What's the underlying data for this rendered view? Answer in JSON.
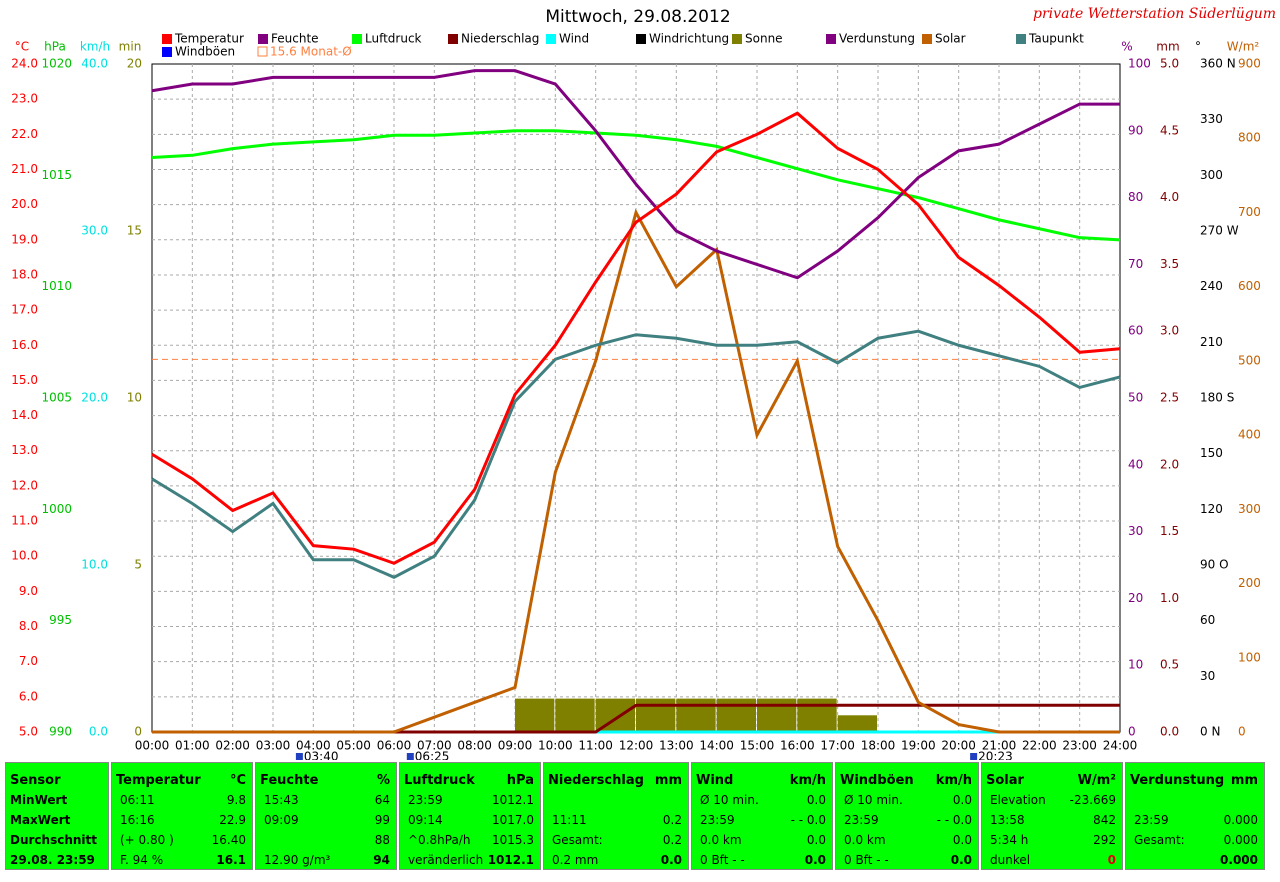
{
  "chart_data": {
    "type": "line",
    "title": "Mittwoch, 29.08.2012",
    "watermark": "private Wetterstation Süderlügum",
    "categories": [
      "00:00",
      "01:00",
      "02:00",
      "03:00",
      "04:00",
      "05:00",
      "06:00",
      "07:00",
      "08:00",
      "09:00",
      "10:00",
      "11:00",
      "12:00",
      "13:00",
      "14:00",
      "15:00",
      "16:00",
      "17:00",
      "18:00",
      "19:00",
      "20:00",
      "21:00",
      "22:00",
      "23:00",
      "24:00"
    ],
    "grid": true,
    "axes": [
      {
        "unit": "°C",
        "color": "#ff0000",
        "ylim": [
          5,
          24
        ],
        "yticks": [
          {
            "value": 5,
            "label": "5.0"
          },
          {
            "value": 6,
            "label": "6.0"
          },
          {
            "value": 7,
            "label": "7.0"
          },
          {
            "value": 8,
            "label": "8.0"
          },
          {
            "value": 9,
            "label": "9.0"
          },
          {
            "value": 10,
            "label": "10.0"
          },
          {
            "value": 11,
            "label": "11.0"
          },
          {
            "value": 12,
            "label": "12.0"
          },
          {
            "value": 13,
            "label": "13.0"
          },
          {
            "value": 14,
            "label": "14.0"
          },
          {
            "value": 15,
            "label": "15.0"
          },
          {
            "value": 16,
            "label": "16.0"
          },
          {
            "value": 17,
            "label": "17.0"
          },
          {
            "value": 18,
            "label": "18.0"
          },
          {
            "value": 19,
            "label": "19.0"
          },
          {
            "value": 20,
            "label": "20.0"
          },
          {
            "value": 21,
            "label": "21.0"
          },
          {
            "value": 22,
            "label": "22.0"
          },
          {
            "value": 23,
            "label": "23.0"
          },
          {
            "value": 24,
            "label": "24.0"
          }
        ]
      },
      {
        "unit": "hPa",
        "color": "#00c000",
        "ylim": [
          990,
          1020
        ],
        "yticks": [
          990,
          995,
          1000,
          1005,
          1010,
          1015,
          1020
        ]
      },
      {
        "unit": "km/h",
        "color": "#00e0e0",
        "ylim": [
          0,
          40
        ],
        "yticks": [
          {
            "value": 0,
            "label": "0.0"
          },
          {
            "value": 10,
            "label": "10.0"
          },
          {
            "value": 20,
            "label": "20.0"
          },
          {
            "value": 30,
            "label": "30.0"
          },
          {
            "value": 40,
            "label": "40.0"
          }
        ]
      },
      {
        "unit": "min",
        "color": "#808000",
        "ylim": [
          0,
          20
        ],
        "yticks": [
          0,
          5,
          10,
          15,
          20
        ]
      },
      {
        "unit": "%",
        "color": "#800080",
        "ylim": [
          0,
          100
        ],
        "yticks": [
          0,
          10,
          20,
          30,
          40,
          50,
          60,
          70,
          80,
          90,
          100
        ]
      },
      {
        "unit": "mm",
        "color": "#800000",
        "ylim": [
          0,
          5
        ],
        "yticks": [
          {
            "value": 0,
            "label": "0.0"
          },
          {
            "value": 0.5,
            "label": "0.5"
          },
          {
            "value": 1,
            "label": "1.0"
          },
          {
            "value": 1.5,
            "label": "1.5"
          },
          {
            "value": 2,
            "label": "2.0"
          },
          {
            "value": 2.5,
            "label": "2.5"
          },
          {
            "value": 3,
            "label": "3.0"
          },
          {
            "value": 3.5,
            "label": "3.5"
          },
          {
            "value": 4,
            "label": "4.0"
          },
          {
            "value": 4.5,
            "label": "4.5"
          },
          {
            "value": 5,
            "label": "5.0"
          }
        ]
      },
      {
        "unit": "°",
        "color": "#000000",
        "ylim": [
          0,
          360
        ],
        "yticks": [
          {
            "value": 0,
            "label": "0 N"
          },
          30,
          60,
          {
            "value": 90,
            "label": "90 O"
          },
          120,
          150,
          {
            "value": 180,
            "label": "180 S"
          },
          210,
          240,
          {
            "value": 270,
            "label": "270 W"
          },
          300,
          330,
          {
            "value": 360,
            "label": "360 N"
          }
        ]
      },
      {
        "unit": "W/m²",
        "color": "#c06000",
        "ylim": [
          0,
          900
        ],
        "yticks": [
          0,
          100,
          200,
          300,
          400,
          500,
          600,
          700,
          800,
          900
        ]
      }
    ],
    "series": [
      {
        "name": "Temperatur",
        "color": "#ff0000",
        "axis": "°C",
        "values": [
          12.9,
          12.2,
          11.3,
          11.8,
          10.3,
          10.2,
          9.8,
          10.4,
          11.9,
          14.6,
          16.0,
          17.8,
          19.5,
          20.3,
          21.5,
          22.0,
          22.6,
          21.6,
          21.0,
          20.0,
          18.5,
          17.7,
          16.8,
          15.8,
          15.9
        ]
      },
      {
        "name": "Feuchte",
        "color": "#800080",
        "axis": "%",
        "values": [
          96,
          97,
          97,
          98,
          98,
          98,
          98,
          98,
          99,
          99,
          97,
          90,
          82,
          75,
          72,
          70,
          68,
          72,
          77,
          83,
          87,
          88,
          91,
          94,
          94
        ]
      },
      {
        "name": "Luftdruck",
        "color": "#00ff00",
        "axis": "hPa",
        "values": [
          1015.8,
          1015.9,
          1016.2,
          1016.4,
          1016.5,
          1016.6,
          1016.8,
          1016.8,
          1016.9,
          1017.0,
          1017.0,
          1016.9,
          1016.8,
          1016.6,
          1016.3,
          1015.8,
          1015.3,
          1014.8,
          1014.4,
          1014.0,
          1013.5,
          1013.0,
          1012.6,
          1012.2,
          1012.1
        ]
      },
      {
        "name": "Niederschlag",
        "color": "#800000",
        "axis": "mm",
        "values": [
          0,
          0,
          0,
          0,
          0,
          0,
          0,
          0,
          0,
          0,
          0,
          0,
          0.2,
          0.2,
          0.2,
          0.2,
          0.2,
          0.2,
          0.2,
          0.2,
          0.2,
          0.2,
          0.2,
          0.2,
          0.2
        ]
      },
      {
        "name": "Wind",
        "color": "#00ffff",
        "axis": "km/h",
        "values": [
          0,
          0,
          0,
          0,
          0,
          0,
          0,
          0,
          0,
          0,
          0,
          0,
          0,
          0,
          0,
          0,
          0,
          0,
          0,
          0,
          0,
          0,
          0,
          0,
          0
        ]
      },
      {
        "name": "Windrichtung",
        "color": "#000000"
      },
      {
        "name": "Sonne",
        "color": "#808000",
        "axis": "min",
        "type": "bar",
        "values": [
          0,
          0,
          0,
          0,
          0,
          0,
          0,
          0,
          0,
          1,
          1,
          1,
          1,
          1,
          1,
          1,
          1,
          0.5,
          0,
          0,
          0,
          0,
          0,
          0,
          0
        ]
      },
      {
        "name": "Verdunstung",
        "color": "#800080"
      },
      {
        "name": "Solar",
        "color": "#c06000",
        "axis": "W/m²",
        "values": [
          0,
          0,
          0,
          0,
          0,
          0,
          0,
          20,
          40,
          60,
          350,
          500,
          700,
          600,
          650,
          400,
          500,
          250,
          150,
          40,
          10,
          0,
          0,
          0,
          0
        ]
      },
      {
        "name": "Taupunkt",
        "color": "#408080",
        "axis": "°C",
        "values": [
          12.2,
          11.5,
          10.7,
          11.5,
          9.9,
          9.9,
          9.4,
          10.0,
          11.6,
          14.4,
          15.6,
          16.0,
          16.3,
          16.2,
          16.0,
          16.0,
          16.1,
          15.5,
          16.2,
          16.4,
          16.0,
          15.7,
          15.4,
          14.8,
          15.1
        ]
      },
      {
        "name": "Windböen",
        "color": "#0000ff"
      }
    ],
    "monthly_mean": {
      "label": "15.6 Monat-Ø",
      "value": 15.6,
      "color": "#ff8040",
      "axis": "°C"
    },
    "markers": [
      "03:40",
      "06:25",
      "20:23"
    ]
  },
  "table": {
    "columns": [
      {
        "header": [
          "Sensor"
        ],
        "rows": [
          {
            "left": "MinWert"
          },
          {
            "left": "MaxWert"
          },
          {
            "left": "Durchschnitt"
          },
          {
            "left": "29.08. 23:59"
          }
        ]
      },
      {
        "header": [
          "Temperatur",
          "°C"
        ],
        "rows": [
          {
            "left": "06:11",
            "right": "9.8"
          },
          {
            "left": "16:16",
            "right": "22.9"
          },
          {
            "left": "(+ 0.80 )",
            "right": "16.40"
          },
          {
            "left": "F. 94 %",
            "right": "16.1"
          }
        ]
      },
      {
        "header": [
          "Feuchte",
          "%"
        ],
        "rows": [
          {
            "left": "15:43",
            "right": "64"
          },
          {
            "left": "09:09",
            "right": "99"
          },
          {
            "right": "88"
          },
          {
            "left": "12.90 g/m³",
            "right": "94"
          }
        ]
      },
      {
        "header": [
          "Luftdruck",
          "hPa"
        ],
        "rows": [
          {
            "left": "23:59",
            "right": "1012.1"
          },
          {
            "left": "09:14",
            "right": "1017.0"
          },
          {
            "left": "^0.8hPa/h",
            "right": "1015.3"
          },
          {
            "left": "veränderlich",
            "right": "1012.1"
          }
        ]
      },
      {
        "header": [
          "Niederschlag",
          "mm"
        ],
        "rows": [
          {},
          {
            "left": "11:11",
            "right": "0.2"
          },
          {
            "left": "Gesamt:",
            "right": "0.2"
          },
          {
            "left": "0.2 mm",
            "right": "0.0"
          }
        ]
      },
      {
        "header": [
          "Wind",
          "km/h"
        ],
        "rows": [
          {
            "left": "Ø 10 min.",
            "right": "0.0"
          },
          {
            "left": "23:59",
            "right": "- - 0.0"
          },
          {
            "left": "0.0 km",
            "right": "0.0"
          },
          {
            "left": "0 Bft - -",
            "right": "0.0"
          }
        ]
      },
      {
        "header": [
          "Windböen",
          "km/h"
        ],
        "rows": [
          {
            "left": "Ø 10 min.",
            "right": "0.0"
          },
          {
            "left": "23:59",
            "right": "- - 0.0"
          },
          {
            "left": "0.0 km",
            "right": "0.0"
          },
          {
            "left": "0 Bft - -",
            "right": "0.0"
          }
        ]
      },
      {
        "header": [
          "Solar",
          "W/m²"
        ],
        "rows": [
          {
            "left": "Elevation",
            "right": "-23.669"
          },
          {
            "left": "13:58",
            "right": "842"
          },
          {
            "left": "5:34 h",
            "right": "292"
          },
          {
            "left": "dunkel",
            "right": "0"
          }
        ]
      },
      {
        "header": [
          "Verdunstung",
          "mm"
        ],
        "rows": [
          {},
          {
            "left": "23:59",
            "right": "0.000"
          },
          {
            "left": "Gesamt:",
            "right": "0.000"
          },
          {
            "right": "0.000"
          }
        ]
      }
    ]
  }
}
